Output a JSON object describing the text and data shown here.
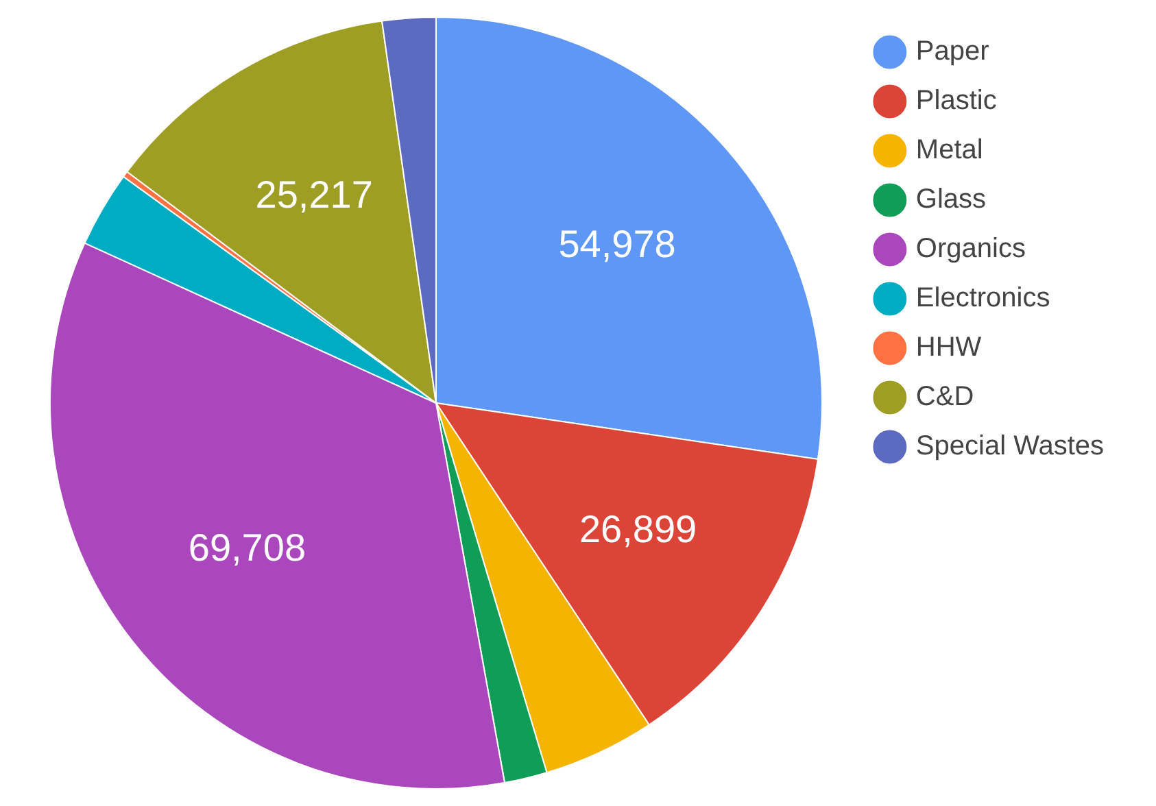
{
  "chart_data": {
    "type": "pie",
    "categories": [
      "Paper",
      "Plastic",
      "Metal",
      "Glass",
      "Organics",
      "Electronics",
      "HHW",
      "C&D",
      "Special Wastes"
    ],
    "values": [
      54978,
      26899,
      9400,
      3600,
      69708,
      6400,
      500,
      25217,
      4500
    ],
    "value_labels": [
      "54,978",
      "26,899",
      null,
      null,
      "69,708",
      null,
      null,
      "25,217",
      null
    ],
    "colors": [
      "#5e97f6",
      "#db4437",
      "#f4b400",
      "#0f9d58",
      "#ab47bc",
      "#00acc1",
      "#ff7043",
      "#9e9d24",
      "#5c6bc0"
    ],
    "legend": "top right"
  }
}
